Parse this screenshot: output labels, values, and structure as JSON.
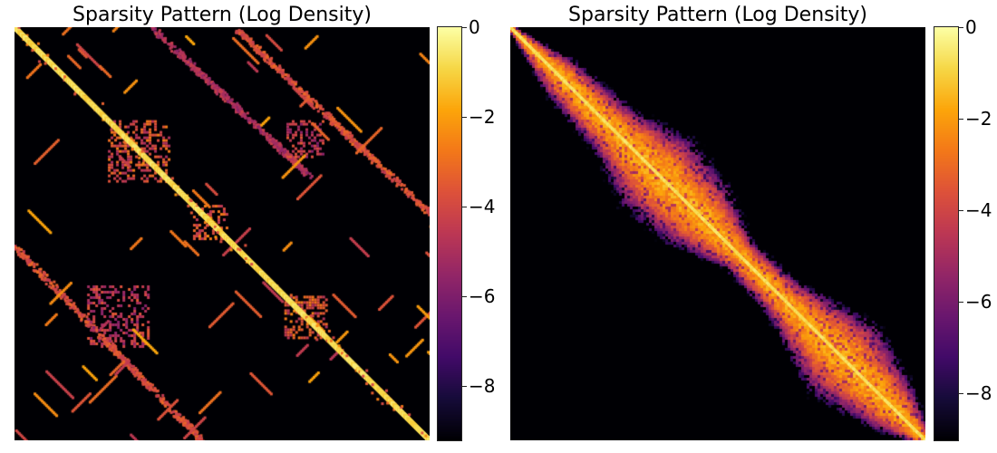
{
  "colors": {
    "background": "#ffffff",
    "colormap": "inferno"
  },
  "chart_data": [
    {
      "type": "heatmap",
      "title": "Sparsity Pattern (Log Density)",
      "xlabel": "",
      "ylabel": "",
      "colorbar": {
        "range": [
          -9.2,
          0
        ],
        "ticks": [
          0,
          -2,
          -4,
          -6,
          -8
        ],
        "tick_labels": [
          "0",
          "−2",
          "−4",
          "−6",
          "−8"
        ]
      },
      "pattern": {
        "description": "structured sparse matrix with strong diagonal, off-diagonal bands and dense blocks",
        "main_diagonal": {
          "from": [
            0,
            0
          ],
          "to": [
            1,
            1
          ],
          "density": -1.2
        },
        "dense_blocks": [
          {
            "center": [
              0.3,
              0.3
            ],
            "size": 0.15,
            "density": -2.6
          },
          {
            "center": [
              0.7,
              0.7
            ],
            "size": 0.1,
            "density": -2.6
          },
          {
            "center": [
              0.7,
              0.27
            ],
            "size": 0.09,
            "density": -3.4
          },
          {
            "center": [
              0.25,
              0.7
            ],
            "size": 0.15,
            "density": -3.4
          },
          {
            "center": [
              0.47,
              0.47
            ],
            "size": 0.08,
            "density": -2.4
          }
        ],
        "off_diagonal_bands": [
          {
            "from": [
              0.53,
              0.0
            ],
            "to": [
              1.0,
              0.45
            ],
            "density": -3.0
          },
          {
            "from": [
              0.0,
              0.53
            ],
            "to": [
              0.45,
              1.0
            ],
            "density": -3.0
          },
          {
            "from": [
              0.33,
              0.0
            ],
            "to": [
              0.7,
              0.35
            ],
            "density": -4.2
          }
        ]
      }
    },
    {
      "type": "heatmap",
      "title": "Sparsity Pattern (Log Density)",
      "xlabel": "",
      "ylabel": "",
      "colorbar": {
        "range": [
          -9.0,
          0
        ],
        "ticks": [
          0,
          -2,
          -4,
          -6,
          -8
        ],
        "tick_labels": [
          "0",
          "−2",
          "−4",
          "−6",
          "−8"
        ]
      },
      "pattern": {
        "description": "banded matrix after reordering, bandwidth varies along diagonal",
        "main_diagonal": {
          "from": [
            0,
            0
          ],
          "to": [
            1,
            1
          ],
          "density": -1.0
        },
        "band_profile": [
          {
            "position": 0.0,
            "half_width": 0.01
          },
          {
            "position": 0.12,
            "half_width": 0.07
          },
          {
            "position": 0.25,
            "half_width": 0.09
          },
          {
            "position": 0.35,
            "half_width": 0.15
          },
          {
            "position": 0.45,
            "half_width": 0.13
          },
          {
            "position": 0.55,
            "half_width": 0.06
          },
          {
            "position": 0.65,
            "half_width": 0.07
          },
          {
            "position": 0.8,
            "half_width": 0.15
          },
          {
            "position": 0.92,
            "half_width": 0.09
          },
          {
            "position": 1.0,
            "half_width": 0.02
          }
        ]
      }
    }
  ]
}
